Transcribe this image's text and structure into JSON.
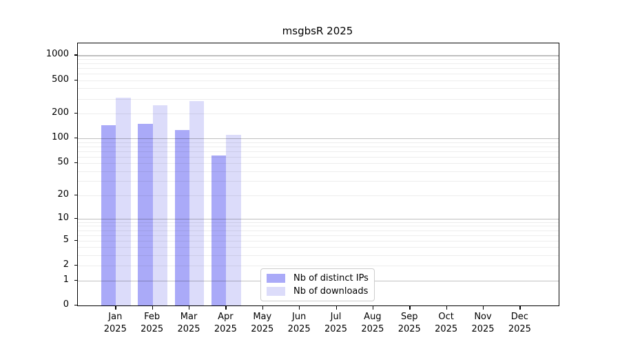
{
  "chart_data": {
    "type": "bar",
    "title": "msgbsR 2025",
    "categories": [
      "Jan",
      "Feb",
      "Mar",
      "Apr",
      "May",
      "Jun",
      "Jul",
      "Aug",
      "Sep",
      "Oct",
      "Nov",
      "Dec"
    ],
    "x_year_label": "2025",
    "series": [
      {
        "name": "Nb of distinct IPs",
        "color": "#aaaaf8",
        "values": [
          145,
          150,
          125,
          62,
          0,
          0,
          0,
          0,
          0,
          0,
          0,
          0
        ]
      },
      {
        "name": "Nb of downloads",
        "color": "#dcdcfa",
        "values": [
          310,
          250,
          280,
          110,
          0,
          0,
          0,
          0,
          0,
          0,
          0,
          0
        ]
      }
    ],
    "yscale": "log10(1+x)",
    "yticks": [
      0,
      1,
      2,
      5,
      10,
      20,
      50,
      100,
      200,
      500,
      1000
    ],
    "major_gridlines": [
      1,
      10,
      100,
      1000
    ],
    "minor_gridline_decades": [
      1,
      10,
      100
    ],
    "ylim": [
      0,
      1400
    ],
    "grid": true,
    "legend_position": "inside-bottom-center",
    "colors": {
      "frame": "#000000",
      "text": "#000000",
      "legend_border": "#cccccc",
      "background": "#ffffff"
    }
  }
}
